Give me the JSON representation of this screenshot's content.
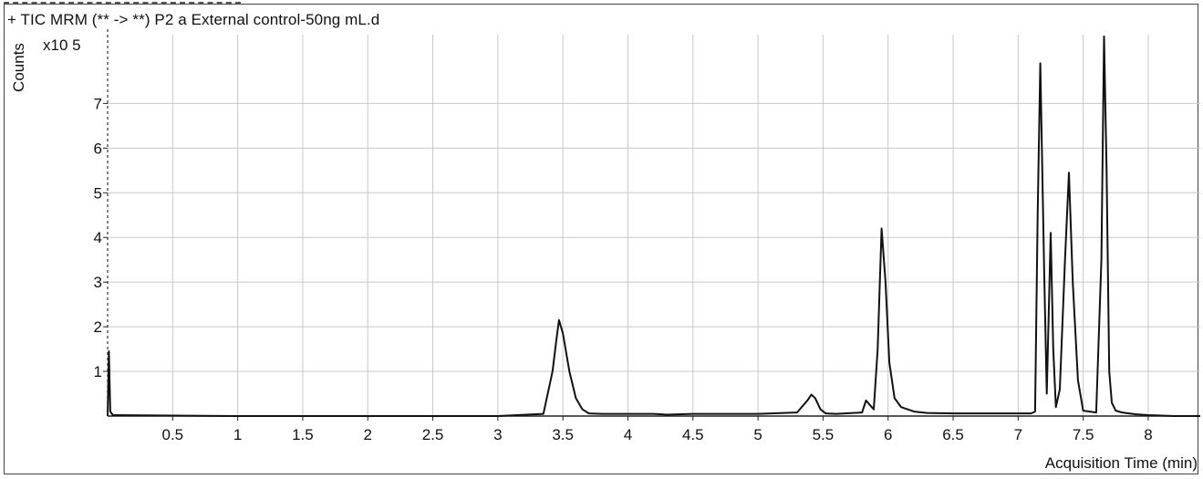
{
  "chart_data": {
    "type": "line",
    "title": "+ TIC MRM (** -> **) P2 a External control-50ng mL.d",
    "xlabel": "Acquisition Time (min)",
    "ylabel": "Counts",
    "y_exponent_label": "x10 5",
    "xlim": [
      0,
      8.4
    ],
    "ylim": [
      0,
      8.5
    ],
    "x_ticks": [
      "0.5",
      "1",
      "1.5",
      "2",
      "2.5",
      "3",
      "3.5",
      "4",
      "4.5",
      "5",
      "5.5",
      "6",
      "6.5",
      "7",
      "7.5",
      "8"
    ],
    "y_ticks": [
      "1",
      "2",
      "3",
      "4",
      "5",
      "6",
      "7"
    ],
    "grid": true,
    "series": [
      {
        "x": [
          0.0,
          0.01,
          0.02,
          0.04,
          1.0,
          2.0,
          3.0,
          3.35,
          3.42,
          3.45,
          3.47,
          3.5,
          3.55,
          3.6,
          3.65,
          3.7,
          3.8,
          4.0,
          4.2,
          4.3,
          4.5,
          5.0,
          5.3,
          5.38,
          5.41,
          5.44,
          5.48,
          5.52,
          5.6,
          5.8,
          5.83,
          5.86,
          5.89,
          5.92,
          5.95,
          5.98,
          6.01,
          6.05,
          6.1,
          6.2,
          6.3,
          6.5,
          7.0,
          7.1,
          7.13,
          7.15,
          7.17,
          7.2,
          7.22,
          7.25,
          7.27,
          7.29,
          7.32,
          7.36,
          7.39,
          7.42,
          7.46,
          7.5,
          7.6,
          7.64,
          7.66,
          7.68,
          7.7,
          7.72,
          7.75,
          7.8,
          7.9,
          8.0,
          8.2,
          8.4
        ],
        "y": [
          0.0,
          1.45,
          0.1,
          0.02,
          0.0,
          0.0,
          0.0,
          0.05,
          1.0,
          1.7,
          2.15,
          1.85,
          1.0,
          0.4,
          0.15,
          0.06,
          0.05,
          0.05,
          0.05,
          0.03,
          0.05,
          0.05,
          0.08,
          0.35,
          0.48,
          0.4,
          0.15,
          0.06,
          0.05,
          0.08,
          0.35,
          0.25,
          0.15,
          1.5,
          4.2,
          3.0,
          1.2,
          0.4,
          0.2,
          0.1,
          0.07,
          0.06,
          0.06,
          0.06,
          0.1,
          4.5,
          7.9,
          3.2,
          0.5,
          4.1,
          1.5,
          0.2,
          0.6,
          3.5,
          5.45,
          3.0,
          0.8,
          0.12,
          0.08,
          3.5,
          8.5,
          5.5,
          1.0,
          0.3,
          0.12,
          0.08,
          0.04,
          0.02,
          0.0,
          0.0
        ]
      }
    ]
  }
}
